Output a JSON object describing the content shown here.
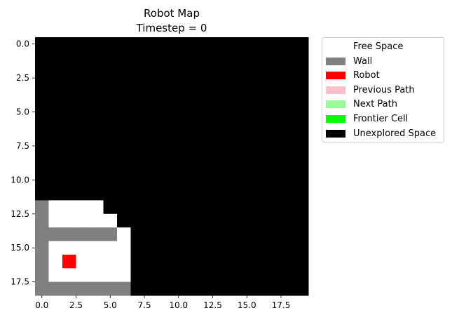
{
  "chart_data": {
    "type": "heatmap",
    "title": "Robot Map",
    "subtitle": "Timestep = 0",
    "xlim": [
      -0.5,
      19.5
    ],
    "ylim": [
      18.5,
      -0.5
    ],
    "xticks": [
      0.0,
      2.5,
      5.0,
      7.5,
      10.0,
      12.5,
      15.0,
      17.5
    ],
    "yticks": [
      0.0,
      2.5,
      5.0,
      7.5,
      10.0,
      12.5,
      15.0,
      17.5
    ],
    "xtick_labels": [
      "0.0",
      "2.5",
      "5.0",
      "7.5",
      "10.0",
      "12.5",
      "15.0",
      "17.5"
    ],
    "ytick_labels": [
      "0.0",
      "2.5",
      "5.0",
      "7.5",
      "10.0",
      "12.5",
      "15.0",
      "17.5"
    ],
    "grid": false,
    "legend_position": "outside-right",
    "colors": {
      "free": "#ffffff",
      "wall": "#808080",
      "robot": "#ff0000",
      "previous_path": "#ffc0cb",
      "next_path": "#98fb98",
      "frontier": "#00ff00",
      "unexplored": "#000000"
    },
    "grid_rows": [
      "UUUUUUUUUUUUUUUUUUUU",
      "UUUUUUUUUUUUUUUUUUUU",
      "UUUUUUUUUUUUUUUUUUUU",
      "UUUUUUUUUUUUUUUUUUUU",
      "UUUUUUUUUUUUUUUUUUUU",
      "UUUUUUUUUUUUUUUUUUUU",
      "UUUUUUUUUUUUUUUUUUUU",
      "UUUUUUUUUUUUUUUUUUUU",
      "UUUUUUUUUUUUUUUUUUUU",
      "UUUUUUUUUUUUUUUUUUUU",
      "UUUUUUUUUUUUUUUUUUUU",
      "UUUUUUUUUUUUUUUUUUUU",
      "WFFFFUUUUUUUUUUUUUUU",
      "WFFFFFUUUUUUUUUUUUUU",
      "WWWWWWFUUUUUUUUUUUUU",
      "WFFFFFFUUUUUUUUUUUUU",
      "WFRFFFFUUUUUUUUUUUUU",
      "WFFFFFFUUUUUUUUUUUUU",
      "WWWWWWWUUUUUUUUUUUUU"
    ],
    "robot_position": [
      2,
      16
    ],
    "legend": [
      {
        "label": "Free Space",
        "color": "#ffffff"
      },
      {
        "label": "Wall",
        "color": "#808080"
      },
      {
        "label": "Robot",
        "color": "#ff0000"
      },
      {
        "label": "Previous Path",
        "color": "#ffc0cb"
      },
      {
        "label": "Next Path",
        "color": "#98fb98"
      },
      {
        "label": "Frontier Cell",
        "color": "#00ff00"
      },
      {
        "label": "Unexplored Space",
        "color": "#000000"
      }
    ]
  }
}
